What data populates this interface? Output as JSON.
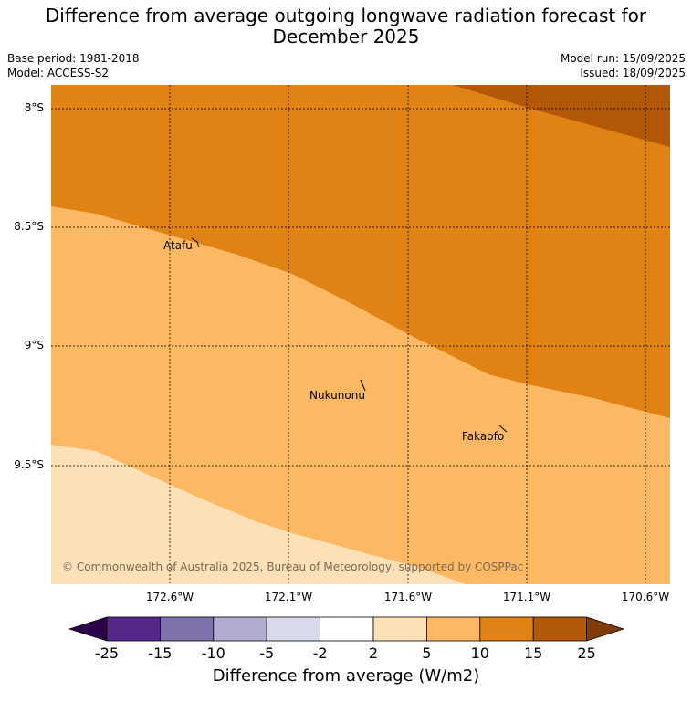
{
  "title": "Difference from average outgoing longwave radiation forecast for December 2025",
  "meta": {
    "base_period": "Base period: 1981-2018",
    "model": "Model: ACCESS-S2",
    "model_run": "Model run: 15/09/2025",
    "issued": "Issued: 18/09/2025"
  },
  "map": {
    "lat_labels": [
      "8°S",
      "8.5°S",
      "9°S",
      "9.5°S"
    ],
    "lon_labels": [
      "172.6°W",
      "172.1°W",
      "171.6°W",
      "171.1°W",
      "170.6°W"
    ],
    "places": [
      "Atafu",
      "Nukunonu",
      "Fakaofo"
    ],
    "copyright": "© Commonwealth of Australia 2025, Bureau of Meteorology, supported by COSPPac",
    "fill_colors": {
      "10_to_15": "#e08214",
      "15_to_25": "#b35806",
      "5_to_10": "#fdb863",
      "2_to_5": "#fee0b6"
    }
  },
  "colorbar": {
    "ticks": [
      "-25",
      "-15",
      "-10",
      "-5",
      "-2",
      "2",
      "5",
      "10",
      "15",
      "25"
    ],
    "colors": [
      "#2d004b",
      "#542788",
      "#8073ac",
      "#b2abd2",
      "#d8daeb",
      "#ffffff",
      "#fee0b6",
      "#fdb863",
      "#e08214",
      "#b35806",
      "#7f3b08"
    ],
    "label": "Difference from average (W/m2)"
  }
}
